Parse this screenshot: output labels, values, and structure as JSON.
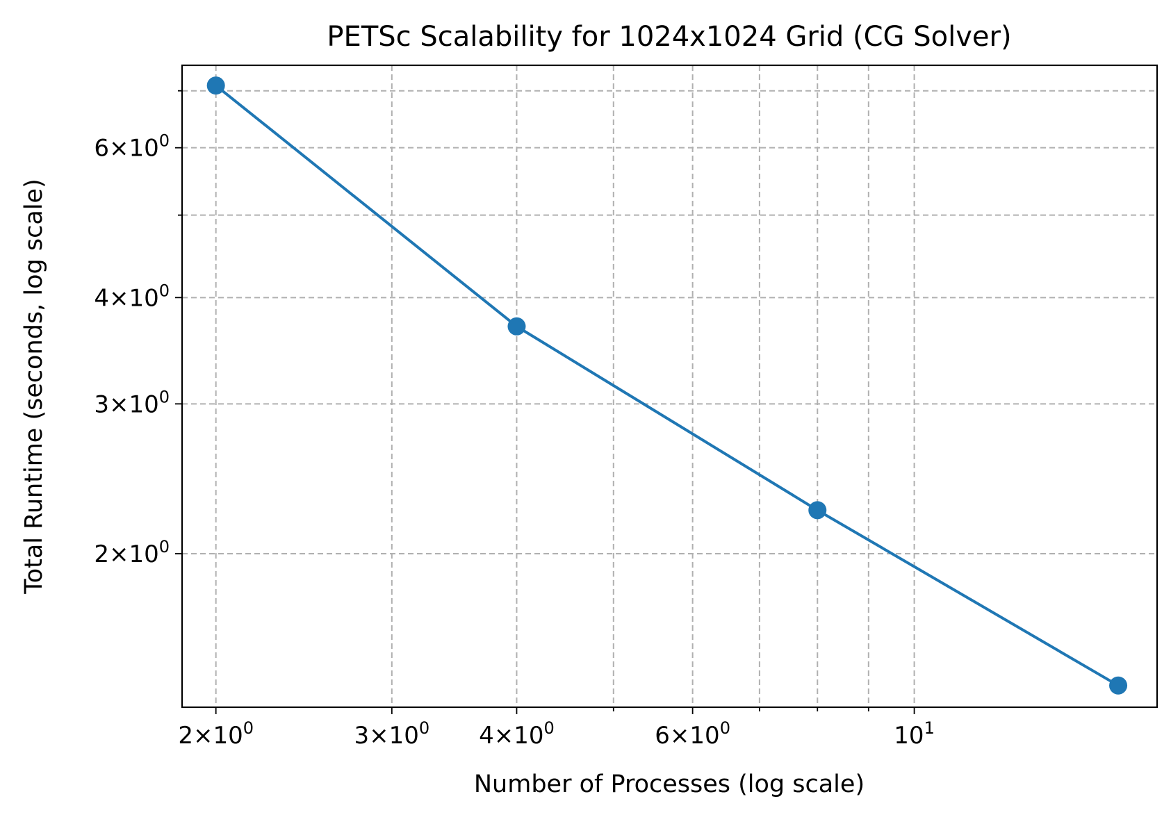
{
  "chart_data": {
    "type": "line",
    "title": "PETSc Scalability for 1024x1024 Grid (CG Solver)",
    "xlabel": "Number of Processes (log scale)",
    "ylabel": "Total Runtime (seconds, log scale)",
    "xscale": "log",
    "yscale": "log",
    "xlim": [
      1.85,
      17.5
    ],
    "ylim": [
      1.32,
      7.5
    ],
    "grid": true,
    "color": "#1f77b4",
    "marker": "circle",
    "x": [
      2,
      4,
      8,
      16
    ],
    "y": [
      7.1,
      3.7,
      2.25,
      1.4
    ],
    "xticks_major": [
      {
        "value": 2,
        "base": "2×10",
        "exp": "0"
      },
      {
        "value": 3,
        "base": "3×10",
        "exp": "0"
      },
      {
        "value": 4,
        "base": "4×10",
        "exp": "0"
      },
      {
        "value": 6,
        "base": "6×10",
        "exp": "0"
      },
      {
        "value": 10,
        "base": "10",
        "exp": "1"
      }
    ],
    "xticks_minor": [
      5,
      7,
      8,
      9
    ],
    "yticks_major": [
      {
        "value": 2,
        "base": "2×10",
        "exp": "0"
      },
      {
        "value": 3,
        "base": "3×10",
        "exp": "0"
      },
      {
        "value": 4,
        "base": "4×10",
        "exp": "0"
      },
      {
        "value": 6,
        "base": "6×10",
        "exp": "0"
      }
    ],
    "yticks_minor": [
      5,
      7
    ]
  }
}
